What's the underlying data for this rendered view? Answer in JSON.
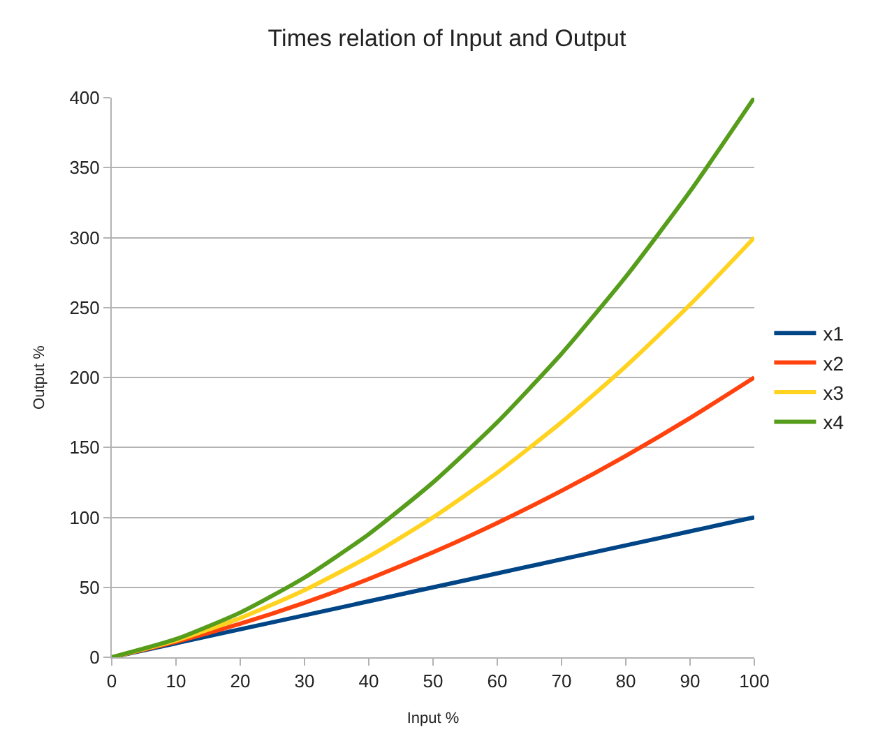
{
  "chart_data": {
    "type": "line",
    "title": "Times relation of Input and Output",
    "xlabel": "Input %",
    "ylabel": "Output %",
    "x": [
      0,
      10,
      20,
      30,
      40,
      50,
      60,
      70,
      80,
      90,
      100
    ],
    "series": [
      {
        "name": "x1",
        "color": "#004586",
        "values": [
          0,
          10,
          20,
          30,
          40,
          50,
          60,
          70,
          80,
          90,
          100
        ]
      },
      {
        "name": "x2",
        "color": "#ff420e",
        "values": [
          0,
          11,
          24,
          39,
          56,
          75,
          96,
          119,
          144,
          171,
          200
        ]
      },
      {
        "name": "x3",
        "color": "#ffd320",
        "values": [
          0,
          12,
          28,
          48,
          72,
          100,
          132,
          168,
          208,
          252,
          300
        ]
      },
      {
        "name": "x4",
        "color": "#579d1c",
        "values": [
          0,
          13,
          32,
          57,
          88,
          125,
          168,
          217,
          272,
          333,
          400
        ]
      }
    ],
    "xlim": [
      0,
      100
    ],
    "xticks": [
      0,
      10,
      20,
      30,
      40,
      50,
      60,
      70,
      80,
      90,
      100
    ],
    "ylim": [
      0,
      400
    ],
    "yticks": [
      0,
      50,
      100,
      150,
      200,
      250,
      300,
      350,
      400
    ],
    "grid": "y",
    "legend": "right",
    "marker": "none",
    "line_style": "solid"
  }
}
